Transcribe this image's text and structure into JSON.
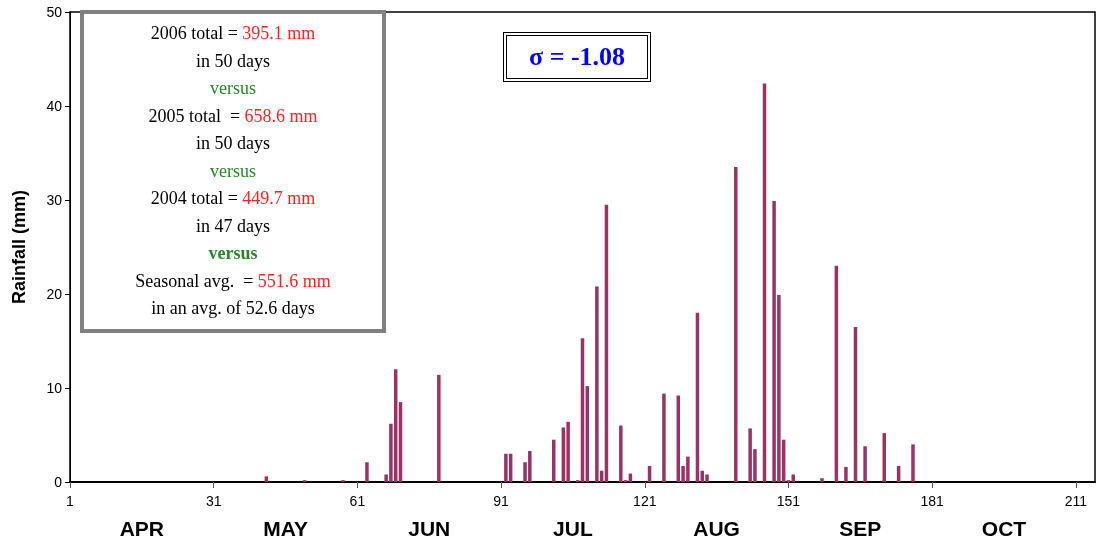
{
  "chart_data": {
    "type": "bar",
    "ylabel": "Rainfall (mm)",
    "color": "#993366",
    "x": [
      42,
      50,
      58,
      63,
      67,
      68,
      69,
      70,
      78,
      92,
      93,
      96,
      97,
      102,
      104,
      105,
      107,
      108,
      109,
      111,
      112,
      113,
      116,
      117,
      118,
      122,
      125,
      128,
      129,
      130,
      132,
      133,
      134,
      140,
      143,
      144,
      146,
      148,
      149,
      150,
      151,
      152,
      158,
      161,
      163,
      165,
      167,
      171,
      174,
      177
    ],
    "values": [
      0.6,
      0.2,
      0.2,
      2.1,
      0.8,
      6.2,
      12.0,
      8.5,
      11.4,
      3.0,
      3.0,
      2.1,
      3.3,
      4.5,
      5.8,
      6.4,
      0.2,
      15.3,
      10.2,
      20.8,
      1.2,
      29.5,
      6.0,
      0.2,
      0.9,
      1.7,
      9.4,
      9.2,
      1.7,
      2.7,
      18.0,
      1.2,
      0.8,
      33.5,
      5.7,
      3.5,
      42.4,
      29.9,
      19.9,
      4.5,
      0.2,
      0.8,
      0.4,
      23.0,
      1.6,
      16.5,
      3.8,
      5.2,
      1.7,
      4.0
    ],
    "xlim": [
      1,
      215
    ],
    "xticks": [
      1,
      31,
      61,
      91,
      121,
      151,
      181,
      211
    ],
    "ylim": [
      0,
      50
    ],
    "yticks": [
      0,
      10,
      20,
      30,
      40,
      50
    ],
    "annotations": [
      "σ = -1.08",
      "2006 total = 395.1 mm\nin 50 days\nversus\n2005 total  = 658.6 mm\nin 50 days\nversus\n2004 total = 449.7 mm\nin 47 days\nversus\nSeasonal avg.  = 551.6 mm\nin an avg. of 52.6 days",
      "APR",
      "MAY",
      "JUN",
      "JUL",
      "AUG",
      "SEP",
      "OCT"
    ]
  }
}
